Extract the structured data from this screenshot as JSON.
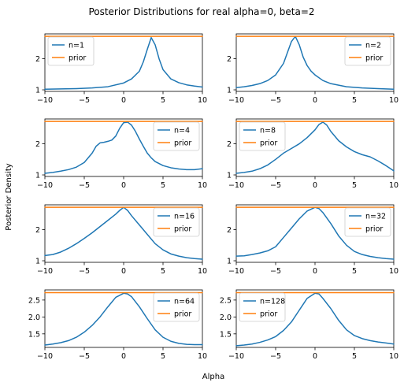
{
  "figure": {
    "title": "Posterior Distributions for real alpha=0, beta=2",
    "xlabel": "Alpha",
    "ylabel": "Posterior Density"
  },
  "colors": {
    "posterior": "#1f77b4",
    "prior": "#ff7f0e"
  },
  "chart_data": [
    {
      "type": "line",
      "xlim": [
        -10,
        10
      ],
      "ylim": [
        0.95,
        2.8
      ],
      "x_ticks": [
        -10,
        -5,
        0,
        5,
        10
      ],
      "y_ticks": [
        1,
        2
      ],
      "legend": "top-left",
      "grid": false,
      "series": [
        {
          "name": "n=1",
          "x": [
            -10,
            -8,
            -6,
            -4,
            -2,
            0,
            1,
            2,
            2.5,
            3,
            3.5,
            4,
            4.5,
            5,
            6,
            7,
            8,
            9,
            10
          ],
          "y": [
            1.02,
            1.03,
            1.04,
            1.06,
            1.1,
            1.22,
            1.35,
            1.6,
            1.9,
            2.3,
            2.68,
            2.45,
            2.0,
            1.65,
            1.35,
            1.23,
            1.16,
            1.12,
            1.09
          ]
        },
        {
          "name": "prior",
          "x": [
            -10,
            10
          ],
          "y": [
            2.72,
            2.72
          ]
        }
      ]
    },
    {
      "type": "line",
      "xlim": [
        -10,
        10
      ],
      "ylim": [
        0.95,
        2.8
      ],
      "x_ticks": [
        -10,
        -5,
        0,
        5,
        10
      ],
      "y_ticks": [
        1,
        2
      ],
      "legend": "top-right",
      "grid": false,
      "series": [
        {
          "name": "n=2",
          "x": [
            -10,
            -9,
            -8,
            -7,
            -6,
            -5,
            -4,
            -3.5,
            -3,
            -2.5,
            -2,
            -1.5,
            -1,
            -0.5,
            0,
            1,
            2,
            4,
            6,
            8,
            10
          ],
          "y": [
            1.07,
            1.1,
            1.14,
            1.2,
            1.3,
            1.48,
            1.85,
            2.2,
            2.55,
            2.72,
            2.45,
            2.05,
            1.78,
            1.6,
            1.48,
            1.3,
            1.2,
            1.1,
            1.06,
            1.04,
            1.02
          ]
        },
        {
          "name": "prior",
          "x": [
            -10,
            10
          ],
          "y": [
            2.72,
            2.72
          ]
        }
      ]
    },
    {
      "type": "line",
      "xlim": [
        -10,
        10
      ],
      "ylim": [
        0.95,
        2.8
      ],
      "x_ticks": [
        -10,
        -5,
        0,
        5,
        10
      ],
      "y_ticks": [
        1,
        2
      ],
      "legend": "top-right",
      "grid": false,
      "series": [
        {
          "name": "n=4",
          "x": [
            -10,
            -9,
            -8,
            -7,
            -6,
            -5,
            -4,
            -3.5,
            -3,
            -2.5,
            -2,
            -1.5,
            -1,
            -0.5,
            0,
            0.5,
            1,
            1.5,
            2,
            2.5,
            3,
            3.5,
            4,
            5,
            6,
            7,
            8,
            9,
            10
          ],
          "y": [
            1.05,
            1.08,
            1.12,
            1.17,
            1.25,
            1.4,
            1.7,
            1.92,
            2.03,
            2.05,
            2.08,
            2.12,
            2.25,
            2.5,
            2.68,
            2.7,
            2.6,
            2.4,
            2.15,
            1.92,
            1.7,
            1.55,
            1.43,
            1.3,
            1.23,
            1.19,
            1.17,
            1.17,
            1.2
          ]
        },
        {
          "name": "prior",
          "x": [
            -10,
            10
          ],
          "y": [
            2.72,
            2.72
          ]
        }
      ]
    },
    {
      "type": "line",
      "xlim": [
        -10,
        10
      ],
      "ylim": [
        0.95,
        2.8
      ],
      "x_ticks": [
        -10,
        -5,
        0,
        5,
        10
      ],
      "y_ticks": [
        1,
        2
      ],
      "legend": "top-left",
      "grid": false,
      "series": [
        {
          "name": "n=8",
          "x": [
            -10,
            -9,
            -8,
            -7,
            -6,
            -5,
            -4,
            -3,
            -2,
            -1,
            0,
            0.5,
            1,
            1.5,
            2,
            3,
            4,
            5,
            6,
            7,
            8,
            9,
            10
          ],
          "y": [
            1.05,
            1.08,
            1.12,
            1.2,
            1.32,
            1.5,
            1.7,
            1.85,
            2.0,
            2.2,
            2.45,
            2.62,
            2.7,
            2.6,
            2.4,
            2.1,
            1.9,
            1.75,
            1.65,
            1.58,
            1.45,
            1.3,
            1.13
          ]
        },
        {
          "name": "prior",
          "x": [
            -10,
            10
          ],
          "y": [
            2.72,
            2.72
          ]
        }
      ]
    },
    {
      "type": "line",
      "xlim": [
        -10,
        10
      ],
      "ylim": [
        0.95,
        2.8
      ],
      "x_ticks": [
        -10,
        -5,
        0,
        5,
        10
      ],
      "y_ticks": [
        1,
        2
      ],
      "legend": "top-right",
      "grid": false,
      "series": [
        {
          "name": "n=16",
          "x": [
            -10,
            -9,
            -8,
            -7,
            -6,
            -5,
            -4,
            -3,
            -2,
            -1,
            -0.5,
            0,
            0.5,
            1,
            2,
            3,
            4,
            5,
            6,
            7,
            8,
            9,
            10
          ],
          "y": [
            1.17,
            1.2,
            1.28,
            1.4,
            1.55,
            1.72,
            1.9,
            2.1,
            2.3,
            2.5,
            2.62,
            2.72,
            2.62,
            2.45,
            2.15,
            1.85,
            1.55,
            1.35,
            1.22,
            1.15,
            1.1,
            1.07,
            1.05
          ]
        },
        {
          "name": "prior",
          "x": [
            -10,
            10
          ],
          "y": [
            2.72,
            2.72
          ]
        }
      ]
    },
    {
      "type": "line",
      "xlim": [
        -10,
        10
      ],
      "ylim": [
        0.95,
        2.8
      ],
      "x_ticks": [
        -10,
        -5,
        0,
        5,
        10
      ],
      "y_ticks": [
        1,
        2
      ],
      "legend": "top-right",
      "grid": false,
      "series": [
        {
          "name": "n=32",
          "x": [
            -10,
            -9,
            -8,
            -7,
            -6,
            -5,
            -4,
            -3,
            -2,
            -1,
            0,
            0.5,
            1,
            2,
            3,
            4,
            5,
            6,
            7,
            8,
            9,
            10
          ],
          "y": [
            1.15,
            1.16,
            1.2,
            1.25,
            1.32,
            1.45,
            1.75,
            2.05,
            2.35,
            2.6,
            2.72,
            2.68,
            2.55,
            2.2,
            1.8,
            1.5,
            1.3,
            1.2,
            1.14,
            1.1,
            1.07,
            1.05
          ]
        },
        {
          "name": "prior",
          "x": [
            -10,
            10
          ],
          "y": [
            2.72,
            2.72
          ]
        }
      ]
    },
    {
      "type": "line",
      "xlim": [
        -10,
        10
      ],
      "ylim": [
        1.1,
        2.8
      ],
      "x_ticks": [
        -10,
        -5,
        0,
        5,
        10
      ],
      "y_ticks": [
        1.5,
        2.0,
        2.5
      ],
      "y_tick_labels": [
        "1.5",
        "2.0",
        "2.5"
      ],
      "legend": "top-right",
      "grid": false,
      "series": [
        {
          "name": "n=64",
          "x": [
            -10,
            -9,
            -8,
            -7,
            -6,
            -5,
            -4,
            -3,
            -2,
            -1,
            0,
            0.5,
            1,
            2,
            3,
            4,
            5,
            6,
            7,
            8,
            9,
            10
          ],
          "y": [
            1.17,
            1.2,
            1.24,
            1.3,
            1.4,
            1.55,
            1.75,
            2.0,
            2.3,
            2.58,
            2.7,
            2.68,
            2.6,
            2.3,
            1.95,
            1.62,
            1.4,
            1.28,
            1.22,
            1.19,
            1.18,
            1.18
          ]
        },
        {
          "name": "prior",
          "x": [
            -10,
            10
          ],
          "y": [
            2.72,
            2.72
          ]
        }
      ]
    },
    {
      "type": "line",
      "xlim": [
        -10,
        10
      ],
      "ylim": [
        1.1,
        2.8
      ],
      "x_ticks": [
        -10,
        -5,
        0,
        5,
        10
      ],
      "y_ticks": [
        1.5,
        2.0,
        2.5
      ],
      "y_tick_labels": [
        "1.5",
        "2.0",
        "2.5"
      ],
      "legend": "top-left",
      "grid": false,
      "series": [
        {
          "name": "n=128",
          "x": [
            -10,
            -9,
            -8,
            -7,
            -6,
            -5,
            -4,
            -3,
            -2,
            -1,
            0,
            0.5,
            1,
            2,
            3,
            4,
            5,
            6,
            7,
            8,
            9,
            10
          ],
          "y": [
            1.15,
            1.17,
            1.2,
            1.25,
            1.32,
            1.42,
            1.6,
            1.85,
            2.2,
            2.55,
            2.7,
            2.68,
            2.55,
            2.25,
            1.9,
            1.62,
            1.45,
            1.36,
            1.3,
            1.26,
            1.23,
            1.2
          ]
        },
        {
          "name": "prior",
          "x": [
            -10,
            10
          ],
          "y": [
            2.72,
            2.72
          ]
        }
      ]
    }
  ]
}
